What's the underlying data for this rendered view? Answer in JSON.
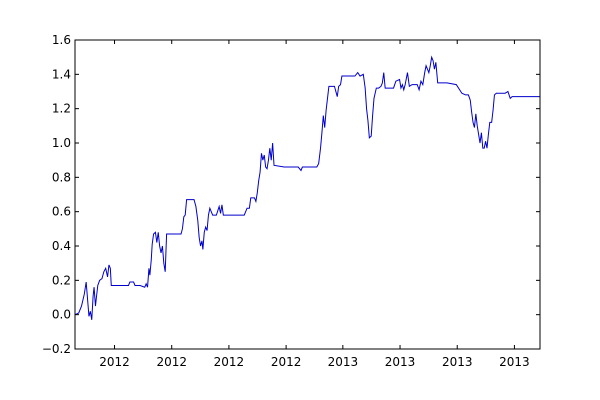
{
  "chart_data": {
    "type": "line",
    "title": "",
    "xlabel": "",
    "ylabel": "",
    "grid": false,
    "xlim": [
      0,
      100
    ],
    "ylim": [
      -0.2,
      1.6
    ],
    "yticks": [
      {
        "value": -0.2,
        "label": "−0.2"
      },
      {
        "value": 0.0,
        "label": "0.0"
      },
      {
        "value": 0.2,
        "label": "0.2"
      },
      {
        "value": 0.4,
        "label": "0.4"
      },
      {
        "value": 0.6,
        "label": "0.6"
      },
      {
        "value": 0.8,
        "label": "0.8"
      },
      {
        "value": 1.0,
        "label": "1.0"
      },
      {
        "value": 1.2,
        "label": "1.2"
      },
      {
        "value": 1.4,
        "label": "1.4"
      },
      {
        "value": 1.6,
        "label": "1.6"
      }
    ],
    "xticks": [
      {
        "value": 8.5,
        "label": "2012"
      },
      {
        "value": 20.8,
        "label": "2012"
      },
      {
        "value": 33.1,
        "label": "2012"
      },
      {
        "value": 45.4,
        "label": "2012"
      },
      {
        "value": 57.6,
        "label": "2013"
      },
      {
        "value": 69.9,
        "label": "2013"
      },
      {
        "value": 82.2,
        "label": "2013"
      },
      {
        "value": 94.5,
        "label": "2013"
      }
    ],
    "series": [
      {
        "color": "#0000cc",
        "points": [
          [
            0.0,
            0.0
          ],
          [
            0.8,
            0.01
          ],
          [
            1.4,
            0.05
          ],
          [
            2.0,
            0.12
          ],
          [
            2.4,
            0.19
          ],
          [
            2.7,
            0.09
          ],
          [
            3.0,
            -0.01
          ],
          [
            3.3,
            0.02
          ],
          [
            3.6,
            -0.03
          ],
          [
            3.9,
            0.11
          ],
          [
            4.1,
            0.16
          ],
          [
            4.4,
            0.05
          ],
          [
            4.6,
            0.1
          ],
          [
            4.9,
            0.17
          ],
          [
            5.3,
            0.2
          ],
          [
            5.8,
            0.21
          ],
          [
            6.2,
            0.25
          ],
          [
            6.6,
            0.27
          ],
          [
            7.0,
            0.22
          ],
          [
            7.3,
            0.29
          ],
          [
            7.6,
            0.27
          ],
          [
            7.8,
            0.17
          ],
          [
            9.0,
            0.17
          ],
          [
            11.5,
            0.17
          ],
          [
            11.8,
            0.19
          ],
          [
            12.6,
            0.19
          ],
          [
            12.9,
            0.17
          ],
          [
            14.0,
            0.17
          ],
          [
            15.0,
            0.16
          ],
          [
            15.3,
            0.18
          ],
          [
            15.6,
            0.16
          ],
          [
            15.9,
            0.27
          ],
          [
            16.1,
            0.23
          ],
          [
            16.4,
            0.32
          ],
          [
            16.6,
            0.41
          ],
          [
            16.9,
            0.47
          ],
          [
            17.3,
            0.48
          ],
          [
            17.6,
            0.42
          ],
          [
            17.9,
            0.48
          ],
          [
            18.2,
            0.4
          ],
          [
            18.5,
            0.36
          ],
          [
            18.8,
            0.4
          ],
          [
            19.1,
            0.3
          ],
          [
            19.4,
            0.25
          ],
          [
            19.7,
            0.47
          ],
          [
            21.0,
            0.47
          ],
          [
            22.8,
            0.47
          ],
          [
            23.1,
            0.5
          ],
          [
            23.4,
            0.57
          ],
          [
            23.7,
            0.58
          ],
          [
            24.0,
            0.67
          ],
          [
            25.6,
            0.67
          ],
          [
            26.0,
            0.63
          ],
          [
            26.4,
            0.55
          ],
          [
            26.7,
            0.45
          ],
          [
            27.0,
            0.4
          ],
          [
            27.3,
            0.43
          ],
          [
            27.5,
            0.38
          ],
          [
            27.8,
            0.48
          ],
          [
            28.1,
            0.51
          ],
          [
            28.4,
            0.49
          ],
          [
            28.7,
            0.58
          ],
          [
            29.0,
            0.62
          ],
          [
            29.3,
            0.6
          ],
          [
            29.6,
            0.58
          ],
          [
            30.4,
            0.58
          ],
          [
            31.0,
            0.63
          ],
          [
            31.3,
            0.59
          ],
          [
            31.6,
            0.64
          ],
          [
            31.9,
            0.58
          ],
          [
            34.5,
            0.58
          ],
          [
            35.0,
            0.58
          ],
          [
            36.4,
            0.58
          ],
          [
            37.0,
            0.62
          ],
          [
            37.5,
            0.62
          ],
          [
            37.8,
            0.68
          ],
          [
            38.6,
            0.68
          ],
          [
            38.9,
            0.66
          ],
          [
            39.2,
            0.71
          ],
          [
            39.5,
            0.78
          ],
          [
            39.8,
            0.83
          ],
          [
            40.1,
            0.94
          ],
          [
            40.4,
            0.9
          ],
          [
            40.7,
            0.93
          ],
          [
            41.0,
            0.86
          ],
          [
            41.3,
            0.85
          ],
          [
            41.6,
            0.9
          ],
          [
            41.9,
            0.97
          ],
          [
            42.2,
            0.9
          ],
          [
            42.5,
            1.0
          ],
          [
            42.8,
            0.87
          ],
          [
            45.0,
            0.86
          ],
          [
            48.0,
            0.86
          ],
          [
            48.6,
            0.84
          ],
          [
            48.9,
            0.86
          ],
          [
            51.0,
            0.86
          ],
          [
            52.0,
            0.86
          ],
          [
            52.4,
            0.88
          ],
          [
            52.8,
            0.97
          ],
          [
            53.1,
            1.06
          ],
          [
            53.4,
            1.16
          ],
          [
            53.7,
            1.09
          ],
          [
            54.0,
            1.19
          ],
          [
            54.3,
            1.26
          ],
          [
            54.6,
            1.33
          ],
          [
            55.8,
            1.33
          ],
          [
            56.1,
            1.3
          ],
          [
            56.4,
            1.27
          ],
          [
            56.7,
            1.33
          ],
          [
            57.1,
            1.34
          ],
          [
            57.4,
            1.39
          ],
          [
            59.0,
            1.39
          ],
          [
            60.2,
            1.39
          ],
          [
            60.8,
            1.41
          ],
          [
            61.3,
            1.39
          ],
          [
            62.0,
            1.4
          ],
          [
            62.4,
            1.32
          ],
          [
            62.7,
            1.2
          ],
          [
            63.0,
            1.13
          ],
          [
            63.3,
            1.03
          ],
          [
            63.7,
            1.04
          ],
          [
            64.0,
            1.16
          ],
          [
            64.3,
            1.26
          ],
          [
            64.8,
            1.32
          ],
          [
            65.3,
            1.32
          ],
          [
            65.8,
            1.33
          ],
          [
            66.1,
            1.35
          ],
          [
            66.4,
            1.41
          ],
          [
            66.7,
            1.32
          ],
          [
            68.5,
            1.32
          ],
          [
            69.0,
            1.36
          ],
          [
            69.8,
            1.37
          ],
          [
            70.1,
            1.32
          ],
          [
            70.4,
            1.34
          ],
          [
            70.7,
            1.31
          ],
          [
            71.0,
            1.34
          ],
          [
            71.5,
            1.41
          ],
          [
            71.9,
            1.33
          ],
          [
            72.5,
            1.34
          ],
          [
            73.6,
            1.34
          ],
          [
            74.0,
            1.31
          ],
          [
            74.4,
            1.36
          ],
          [
            74.8,
            1.34
          ],
          [
            75.2,
            1.41
          ],
          [
            75.5,
            1.45
          ],
          [
            75.8,
            1.43
          ],
          [
            76.1,
            1.41
          ],
          [
            76.4,
            1.45
          ],
          [
            76.7,
            1.5
          ],
          [
            77.0,
            1.48
          ],
          [
            77.3,
            1.43
          ],
          [
            77.6,
            1.47
          ],
          [
            78.0,
            1.35
          ],
          [
            80.0,
            1.35
          ],
          [
            82.0,
            1.34
          ],
          [
            83.2,
            1.29
          ],
          [
            84.0,
            1.28
          ],
          [
            84.6,
            1.28
          ],
          [
            85.0,
            1.25
          ],
          [
            85.3,
            1.18
          ],
          [
            85.6,
            1.12
          ],
          [
            85.9,
            1.09
          ],
          [
            86.2,
            1.17
          ],
          [
            86.5,
            1.1
          ],
          [
            86.8,
            1.05
          ],
          [
            87.1,
            1.0
          ],
          [
            87.4,
            1.06
          ],
          [
            87.7,
            0.97
          ],
          [
            88.0,
            0.97
          ],
          [
            88.3,
            1.01
          ],
          [
            88.6,
            0.97
          ],
          [
            88.9,
            1.05
          ],
          [
            89.2,
            1.12
          ],
          [
            89.6,
            1.12
          ],
          [
            89.9,
            1.19
          ],
          [
            90.2,
            1.28
          ],
          [
            90.6,
            1.29
          ],
          [
            92.5,
            1.29
          ],
          [
            93.1,
            1.3
          ],
          [
            93.6,
            1.26
          ],
          [
            94.0,
            1.27
          ],
          [
            97.0,
            1.27
          ],
          [
            100.0,
            1.27
          ]
        ]
      }
    ]
  }
}
